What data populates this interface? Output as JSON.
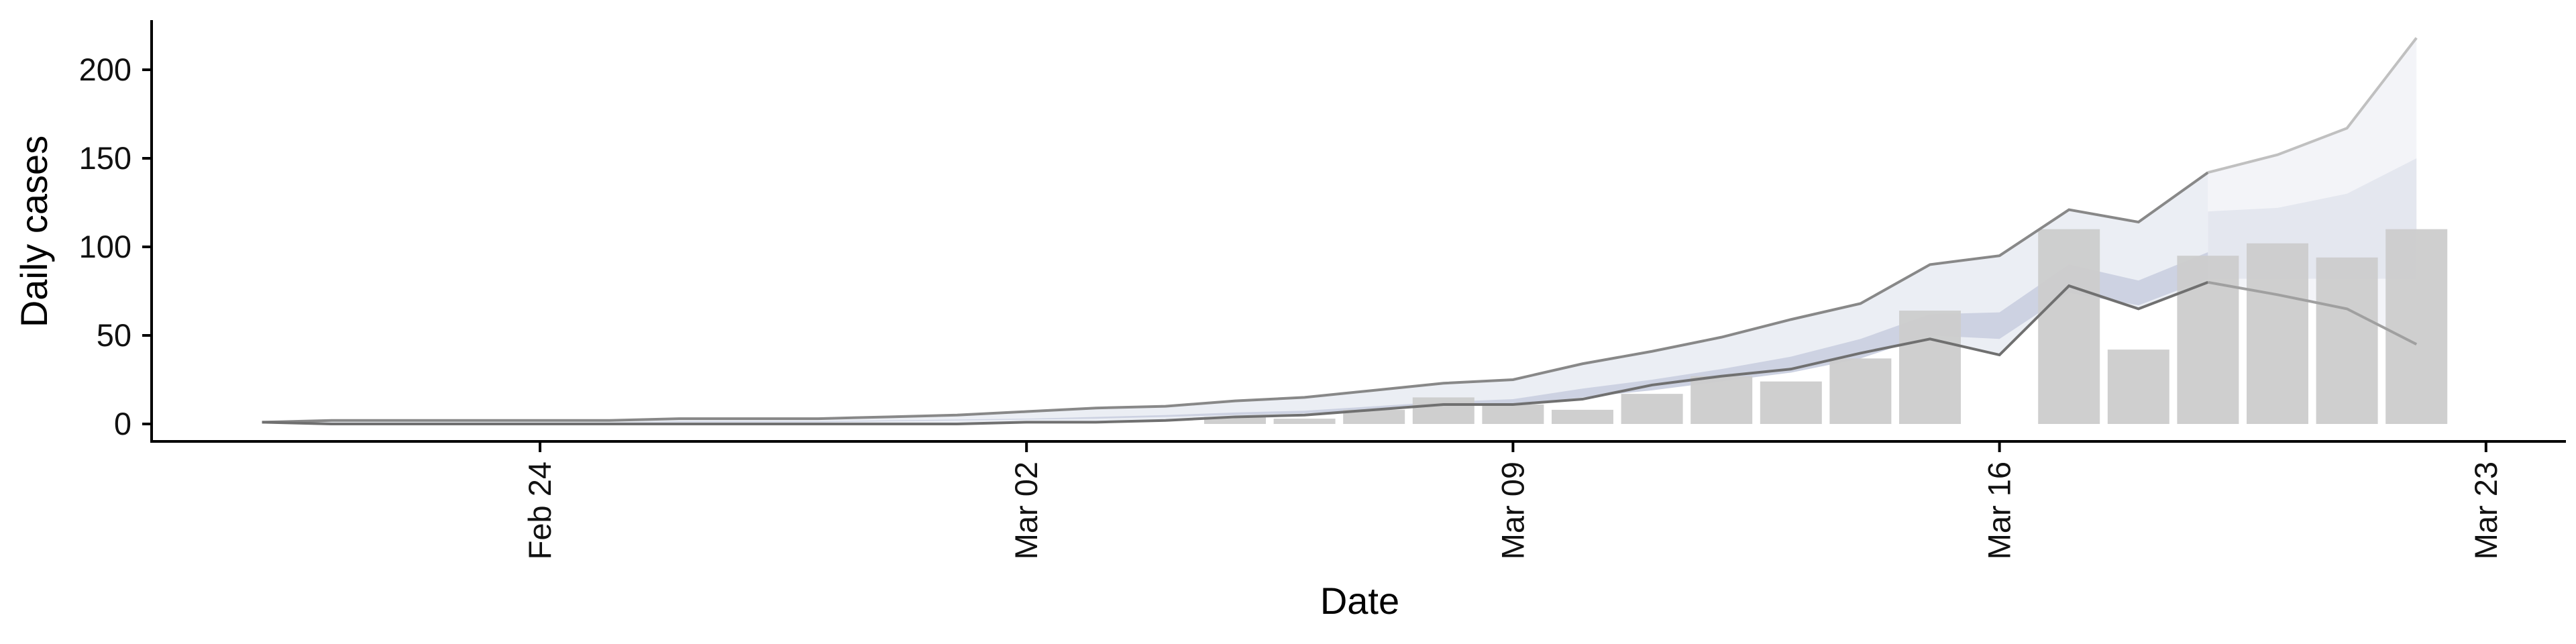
{
  "chart_data": {
    "type": "bar",
    "title": "",
    "xlabel": "Date",
    "ylabel": "Daily cases",
    "ylim": [
      -10,
      230
    ],
    "xlim": [
      "2020-02-16",
      "2020-03-24"
    ],
    "yticks": [
      0,
      50,
      100,
      150,
      200
    ],
    "xticks": [
      {
        "date": "2020-02-24",
        "label": "Feb 24"
      },
      {
        "date": "2020-03-02",
        "label": "Mar 02"
      },
      {
        "date": "2020-03-09",
        "label": "Mar 09"
      },
      {
        "date": "2020-03-16",
        "label": "Mar 16"
      },
      {
        "date": "2020-03-23",
        "label": "Mar 23"
      }
    ],
    "grid": false,
    "legend": "none",
    "colors": {
      "bars": "#cccccc",
      "band_outer": "#ebeef4",
      "band_inner": "#cdd2e2",
      "bound_lines": "#888888",
      "forecast_outer": "#f3f4f8",
      "forecast_inner": "#e4e7ef",
      "forecast_lines": "#c0c0c0"
    },
    "dates": [
      "2020-02-20",
      "2020-02-21",
      "2020-02-22",
      "2020-02-23",
      "2020-02-24",
      "2020-02-25",
      "2020-02-26",
      "2020-02-27",
      "2020-02-28",
      "2020-02-29",
      "2020-03-01",
      "2020-03-02",
      "2020-03-03",
      "2020-03-04",
      "2020-03-05",
      "2020-03-06",
      "2020-03-07",
      "2020-03-08",
      "2020-03-09",
      "2020-03-10",
      "2020-03-11",
      "2020-03-12",
      "2020-03-13",
      "2020-03-14",
      "2020-03-15",
      "2020-03-16",
      "2020-03-17",
      "2020-03-18",
      "2020-03-19",
      "2020-03-20",
      "2020-03-21",
      "2020-03-22"
    ],
    "values": [
      0,
      0,
      0,
      0,
      0,
      0,
      0,
      0,
      0,
      0,
      0,
      0,
      0,
      0,
      4,
      3,
      8,
      15,
      11,
      8,
      17,
      27,
      24,
      37,
      64,
      0,
      110,
      42,
      95,
      102,
      94,
      110
    ],
    "series": [
      {
        "name": "",
        "values": [
          1,
          0.5,
          1,
          1,
          1,
          1,
          1.5,
          1.5,
          1.5,
          2,
          2.5,
          3,
          4,
          5,
          6.5,
          7.5,
          10,
          12.5,
          14,
          20,
          25,
          31,
          38,
          48,
          62,
          63,
          90,
          81,
          97,
          98,
          100,
          102
        ],
        "role": "upper-outer"
      },
      {
        "name": "",
        "values": [
          1,
          0.5,
          1,
          1,
          1,
          1,
          1,
          1,
          1,
          1.5,
          2,
          2.5,
          3,
          4,
          5,
          6,
          8,
          10.5,
          11,
          15,
          19,
          24,
          29,
          37,
          50,
          48,
          74,
          67,
          82,
          82,
          82,
          82
        ],
        "role": "lower-outer"
      },
      {
        "name": "",
        "values": [
          1,
          2,
          2,
          2,
          2,
          2,
          3,
          3,
          3,
          4,
          5,
          7,
          9,
          10,
          13,
          15,
          19,
          23,
          25,
          34,
          41,
          49,
          59,
          68,
          90,
          95,
          121,
          114,
          142,
          152,
          167,
          218
        ],
        "role": "upper-bound"
      },
      {
        "name": "",
        "values": [
          1,
          0,
          0,
          0,
          0,
          0,
          0,
          0,
          0,
          0,
          0,
          1,
          1,
          2,
          4,
          5,
          8,
          11,
          11,
          14,
          22,
          27,
          31,
          40,
          48,
          39,
          78,
          65,
          80,
          73,
          65,
          45
        ],
        "role": "lower-bound"
      },
      {
        "name": "",
        "values": [
          0,
          0,
          0,
          0,
          0,
          0,
          0,
          0,
          0,
          0,
          0,
          0,
          0,
          0,
          0,
          0,
          0,
          0,
          0,
          0,
          0,
          0,
          0,
          0,
          0,
          0,
          0,
          0,
          120,
          122,
          130,
          150
        ],
        "role": "forecast-inner-upper"
      }
    ]
  }
}
